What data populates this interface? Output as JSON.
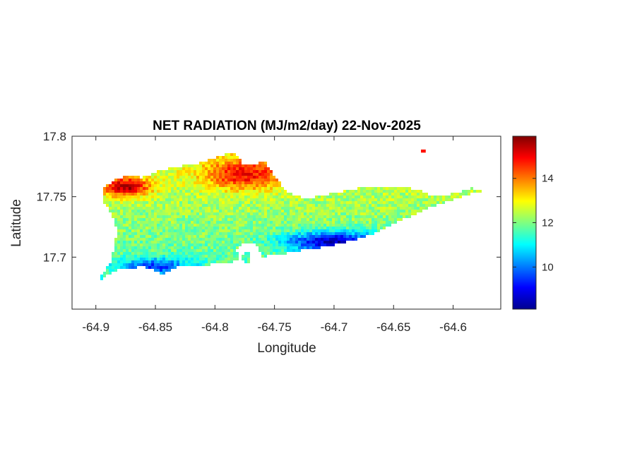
{
  "chart_data": {
    "type": "heatmap",
    "title": "NET RADIATION (MJ/m2/day) 22-Nov-2025",
    "xlabel": "Longitude",
    "ylabel": "Latitude",
    "xlim": [
      -64.92,
      -64.56
    ],
    "ylim": [
      17.657,
      17.8
    ],
    "xticks": [
      -64.9,
      -64.85,
      -64.8,
      -64.75,
      -64.7,
      -64.65,
      -64.6
    ],
    "xtick_labels": [
      "-64.9",
      "-64.85",
      "-64.8",
      "-64.75",
      "-64.7",
      "-64.65",
      "-64.6"
    ],
    "yticks": [
      17.7,
      17.75,
      17.8
    ],
    "ytick_labels": [
      "17.7",
      "17.75",
      "17.8"
    ],
    "colorbar": {
      "colormap": "jet",
      "range": [
        8.1,
        15.9
      ],
      "ticks": [
        10,
        12,
        14
      ],
      "tick_labels": [
        "10",
        "12",
        "14"
      ]
    },
    "island_outline": [
      [
        -64.899,
        17.679
      ],
      [
        -64.89,
        17.685
      ],
      [
        -64.88,
        17.691
      ],
      [
        -64.87,
        17.691
      ],
      [
        -64.86,
        17.692
      ],
      [
        -64.85,
        17.689
      ],
      [
        -64.845,
        17.685
      ],
      [
        -64.838,
        17.689
      ],
      [
        -64.828,
        17.693
      ],
      [
        -64.815,
        17.693
      ],
      [
        -64.8,
        17.694
      ],
      [
        -64.79,
        17.694
      ],
      [
        -64.78,
        17.699
      ],
      [
        -64.772,
        17.705
      ],
      [
        -64.77,
        17.695
      ],
      [
        -64.776,
        17.696
      ],
      [
        -64.782,
        17.706
      ],
      [
        -64.775,
        17.712
      ],
      [
        -64.765,
        17.71
      ],
      [
        -64.76,
        17.7
      ],
      [
        -64.75,
        17.702
      ],
      [
        -64.74,
        17.703
      ],
      [
        -64.725,
        17.706
      ],
      [
        -64.71,
        17.708
      ],
      [
        -64.695,
        17.711
      ],
      [
        -64.68,
        17.715
      ],
      [
        -64.665,
        17.72
      ],
      [
        -64.65,
        17.727
      ],
      [
        -64.64,
        17.732
      ],
      [
        -64.63,
        17.736
      ],
      [
        -64.62,
        17.741
      ],
      [
        -64.605,
        17.746
      ],
      [
        -64.59,
        17.751
      ],
      [
        -64.578,
        17.754
      ],
      [
        -64.572,
        17.755
      ],
      [
        -64.585,
        17.757
      ],
      [
        -64.595,
        17.754
      ],
      [
        -64.605,
        17.751
      ],
      [
        -64.62,
        17.752
      ],
      [
        -64.63,
        17.756
      ],
      [
        -64.645,
        17.758
      ],
      [
        -64.66,
        17.759
      ],
      [
        -64.675,
        17.758
      ],
      [
        -64.69,
        17.755
      ],
      [
        -64.705,
        17.752
      ],
      [
        -64.72,
        17.749
      ],
      [
        -64.73,
        17.75
      ],
      [
        -64.74,
        17.755
      ],
      [
        -64.748,
        17.765
      ],
      [
        -64.755,
        17.775
      ],
      [
        -64.758,
        17.781
      ],
      [
        -64.765,
        17.776
      ],
      [
        -64.775,
        17.776
      ],
      [
        -64.783,
        17.785
      ],
      [
        -64.79,
        17.786
      ],
      [
        -64.8,
        17.782
      ],
      [
        -64.815,
        17.777
      ],
      [
        -64.83,
        17.775
      ],
      [
        -64.845,
        17.772
      ],
      [
        -64.86,
        17.766
      ],
      [
        -64.875,
        17.767
      ],
      [
        -64.885,
        17.764
      ],
      [
        -64.893,
        17.757
      ],
      [
        -64.895,
        17.748
      ],
      [
        -64.89,
        17.74
      ],
      [
        -64.885,
        17.732
      ],
      [
        -64.882,
        17.72
      ],
      [
        -64.885,
        17.708
      ],
      [
        -64.888,
        17.695
      ],
      [
        -64.894,
        17.686
      ]
    ],
    "islet_outline": [
      [
        -64.627,
        17.789
      ],
      [
        -64.623,
        17.789
      ],
      [
        -64.623,
        17.787
      ],
      [
        -64.627,
        17.787
      ]
    ],
    "value_pattern": "High (15-16) along the north coast, especially the northwest (-64.89 to -64.86, 17.75-17.76) and north-central (-64.8 to -64.74, 17.75-17.78); mid (12-13) across the interior and the eastern arm; low (9-11) along the south coast, lowest (about 9) near -64.71, 17.715."
  }
}
